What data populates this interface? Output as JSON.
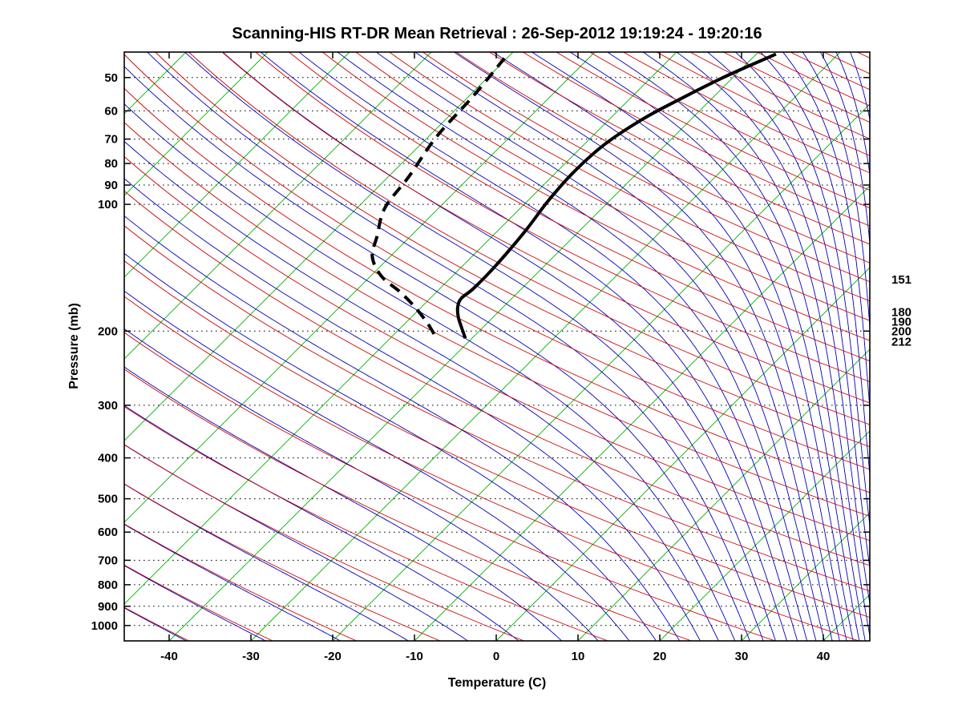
{
  "title": "Scanning-HIS RT-DR Mean Retrieval : 26-Sep-2012 19:19:24 - 19:20:16",
  "axes": {
    "x": {
      "label": "Temperature (C)",
      "ticks": [
        -40,
        -30,
        -20,
        -10,
        0,
        10,
        20,
        30,
        40
      ]
    },
    "y": {
      "label": "Pressure (mb)",
      "ticks": [
        50,
        60,
        70,
        80,
        90,
        100,
        200,
        300,
        400,
        500,
        600,
        700,
        800,
        900,
        1000
      ]
    }
  },
  "right_pressure_labels": [
    "151",
    "180",
    "190",
    "200",
    "212"
  ],
  "chart_data": {
    "type": "skewt_log_p",
    "title": "Scanning-HIS RT-DR Mean Retrieval : 26-Sep-2012 19:19:24 - 19:20:16",
    "xlabel": "Temperature (C)",
    "ylabel": "Pressure (mb)",
    "x_ticks": [
      -40,
      -30,
      -20,
      -10,
      0,
      10,
      20,
      30,
      40
    ],
    "y_ticks": [
      50,
      60,
      70,
      80,
      90,
      100,
      200,
      300,
      400,
      500,
      600,
      700,
      800,
      900,
      1000
    ],
    "pressure_range_mb": [
      43.5,
      1087.5
    ],
    "surface_temp_range_c": [
      -45.5,
      45.7
    ],
    "skew": "45deg",
    "grid": {
      "pressure_dotted_lines_mb": [
        50,
        60,
        70,
        80,
        90,
        100,
        200,
        300,
        400,
        500,
        600,
        700,
        800,
        900,
        1000
      ],
      "style": "dotted",
      "color": "#000000"
    },
    "isotherms": {
      "color": "#00B000",
      "min_c": -110,
      "max_c": 40,
      "step_c": 10
    },
    "dry_adiabats": {
      "color": "#CC0000",
      "min_k": 230,
      "max_k": 600,
      "step_k": 10
    },
    "moist_adiabats": {
      "color": "#0000BB",
      "min_k": 230,
      "max_k": 600,
      "step_k": 10
    },
    "series": [
      {
        "name": "temperature",
        "line": "solid",
        "color": "#000000",
        "points_p_t": [
          [
            44,
            -37.6
          ],
          [
            50,
            -41.2
          ],
          [
            57,
            -44.1
          ],
          [
            63,
            -46.0
          ],
          [
            72,
            -47.5
          ],
          [
            84,
            -47.9
          ],
          [
            98,
            -47.5
          ],
          [
            116,
            -46.6
          ],
          [
            139,
            -46.0
          ],
          [
            158,
            -45.9
          ],
          [
            167,
            -46.2
          ],
          [
            175,
            -45.6
          ],
          [
            185,
            -44.3
          ],
          [
            196,
            -42.6
          ],
          [
            208,
            -40.8
          ]
        ]
      },
      {
        "name": "dewpoint",
        "line": "dashed",
        "color": "#000000",
        "points_p_t": [
          [
            45,
            -70.3
          ],
          [
            55,
            -69.5
          ],
          [
            69,
            -69.0
          ],
          [
            86,
            -67.5
          ],
          [
            102,
            -66.6
          ],
          [
            119,
            -64.1
          ],
          [
            133,
            -62.2
          ],
          [
            148,
            -58.7
          ],
          [
            162,
            -54.3
          ],
          [
            177,
            -50.4
          ],
          [
            193,
            -47.0
          ],
          [
            210,
            -44.0
          ]
        ]
      }
    ],
    "right_labels": [
      {
        "p_mb": 151,
        "text": "151"
      },
      {
        "p_mb": 180,
        "text": "180"
      },
      {
        "p_mb": 190,
        "text": "190"
      },
      {
        "p_mb": 200,
        "text": "200"
      },
      {
        "p_mb": 212,
        "text": "212"
      }
    ]
  }
}
